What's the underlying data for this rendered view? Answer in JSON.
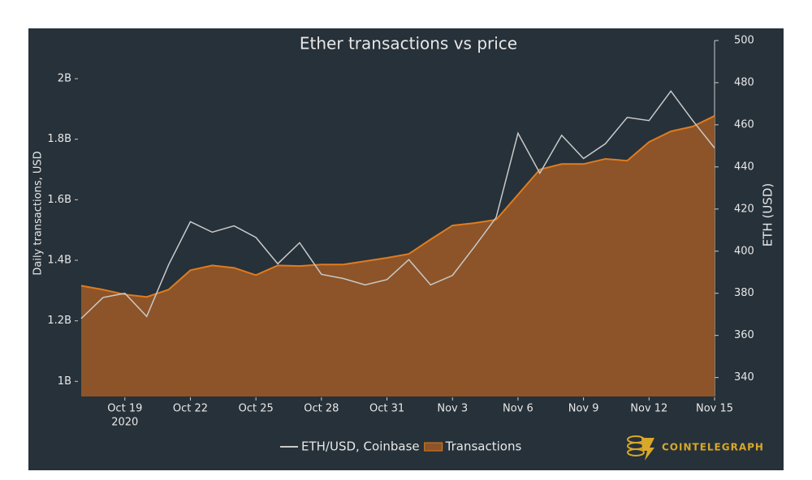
{
  "chart_data": {
    "type": "line-area",
    "title": "Ether transactions vs price",
    "ylabel": "Daily transactions, USD",
    "y2label": "ETH (USD)",
    "x": [
      "2020-10-17",
      "2020-10-18",
      "2020-10-19",
      "2020-10-20",
      "2020-10-21",
      "2020-10-22",
      "2020-10-23",
      "2020-10-24",
      "2020-10-25",
      "2020-10-26",
      "2020-10-27",
      "2020-10-28",
      "2020-10-29",
      "2020-10-30",
      "2020-10-31",
      "2020-11-01",
      "2020-11-02",
      "2020-11-03",
      "2020-11-04",
      "2020-11-05",
      "2020-11-06",
      "2020-11-07",
      "2020-11-08",
      "2020-11-09",
      "2020-11-10",
      "2020-11-11",
      "2020-11-12",
      "2020-11-13",
      "2020-11-14",
      "2020-11-15"
    ],
    "xlim": [
      "2020-10-17",
      "2020-11-15"
    ],
    "xticks": [
      {
        "value": "2020-10-19",
        "label": "Oct 19"
      },
      {
        "value": "2020-10-22",
        "label": "Oct 22"
      },
      {
        "value": "2020-10-25",
        "label": "Oct 25"
      },
      {
        "value": "2020-10-28",
        "label": "Oct 28"
      },
      {
        "value": "2020-10-31",
        "label": "Oct 31"
      },
      {
        "value": "2020-11-03",
        "label": "Nov 3"
      },
      {
        "value": "2020-11-06",
        "label": "Nov 6"
      },
      {
        "value": "2020-11-09",
        "label": "Nov 9"
      },
      {
        "value": "2020-11-12",
        "label": "Nov 12"
      },
      {
        "value": "2020-11-15",
        "label": "Nov 15"
      }
    ],
    "x_year_label": "2020",
    "ylim": [
      950000000,
      2126000000
    ],
    "yticks": [
      {
        "value": 1000000000,
        "label": "1B"
      },
      {
        "value": 1200000000,
        "label": "1.2B"
      },
      {
        "value": 1400000000,
        "label": "1.4B"
      },
      {
        "value": 1600000000,
        "label": "1.6B"
      },
      {
        "value": 1800000000,
        "label": "1.8B"
      },
      {
        "value": 2000000000,
        "label": "2B"
      }
    ],
    "y2lim": [
      331,
      500
    ],
    "y2ticks": [
      340,
      360,
      380,
      400,
      420,
      440,
      460,
      480,
      500
    ],
    "series": [
      {
        "name": "ETH/USD, Coinbase",
        "color": "#c9c9c9",
        "axis": "y2",
        "style": "line",
        "values": [
          368,
          378,
          380,
          369,
          393.5,
          414,
          409,
          412,
          406.5,
          394,
          404,
          389,
          387,
          384,
          386.5,
          396,
          384,
          388.5,
          402,
          416,
          456,
          437,
          455,
          444,
          451,
          463.5,
          462,
          476,
          462,
          449
        ]
      },
      {
        "name": "Transactions",
        "color": "#e07b20",
        "fill": "#8c5428",
        "style": "area",
        "values": [
          1316000000,
          1303000000,
          1287000000,
          1279000000,
          1303000000,
          1367000000,
          1383000000,
          1375000000,
          1351000000,
          1383000000,
          1381000000,
          1386000000,
          1386000000,
          1397000000,
          1408000000,
          1421000000,
          1469000000,
          1515000000,
          1523000000,
          1534000000,
          1617000000,
          1700000000,
          1718000000,
          1718000000,
          1735000000,
          1729000000,
          1791000000,
          1826000000,
          1842000000,
          1877000000
        ]
      }
    ],
    "watermark": "COINTELEGRAPH"
  }
}
